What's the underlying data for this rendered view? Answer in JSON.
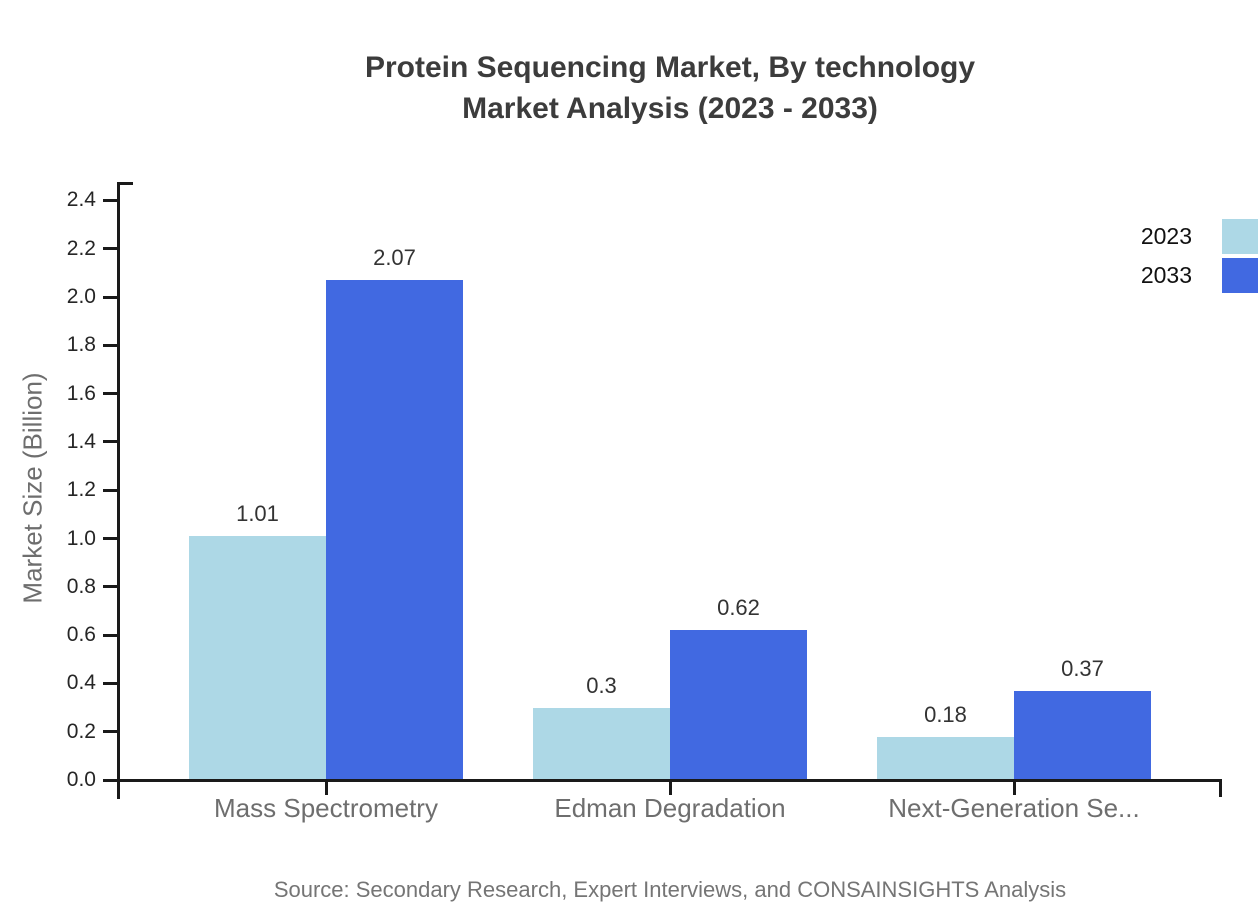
{
  "title": {
    "line1": "Protein Sequencing Market, By technology",
    "line2": "Market Analysis (2023 - 2033)"
  },
  "source_note": "Source: Secondary Research, Expert Interviews, and CONSAINSIGHTS Analysis",
  "chart_data": {
    "type": "bar",
    "title": "Protein Sequencing Market, By technology Market Analysis (2023 - 2033)",
    "categories": [
      "Mass Spectrometry",
      "Edman Degradation",
      "Next-Generation Se..."
    ],
    "series": [
      {
        "name": "2023",
        "color": "#add8e6",
        "values": [
          1.01,
          0.3,
          0.18
        ]
      },
      {
        "name": "2033",
        "color": "#4169e1",
        "values": [
          2.07,
          0.62,
          0.37
        ]
      }
    ],
    "xlabel": "",
    "ylabel": "Market Size (Billion)",
    "ylim": [
      0,
      2.4
    ],
    "yticks": [
      0.0,
      0.2,
      0.4,
      0.6,
      0.8,
      1.0,
      1.2,
      1.4,
      1.6,
      1.8,
      2.0,
      2.2,
      2.4
    ],
    "ytick_labels": [
      "0.0",
      "0.2",
      "0.4",
      "0.6",
      "0.8",
      "1.0",
      "1.2",
      "1.4",
      "1.6",
      "1.8",
      "2.0",
      "2.2",
      "2.4"
    ],
    "value_labels": [
      "1.01",
      "0.3",
      "0.18",
      "2.07",
      "0.62",
      "0.37"
    ],
    "grid": false,
    "legend_position": "top-right",
    "bar_value_labels": true
  }
}
